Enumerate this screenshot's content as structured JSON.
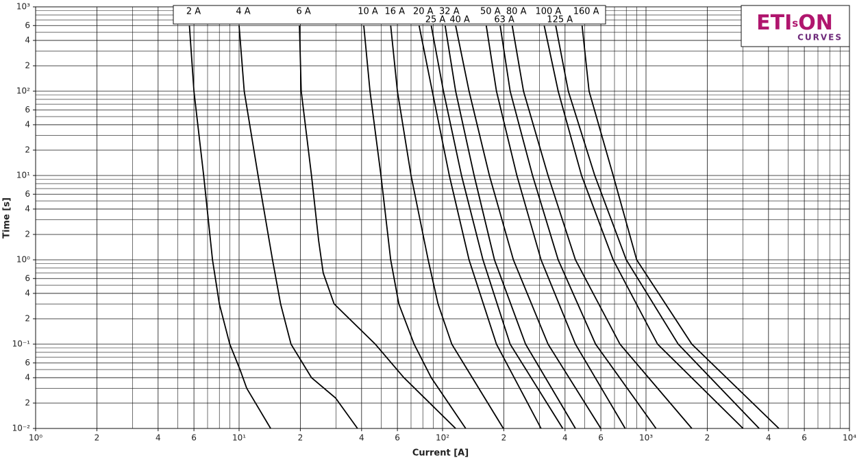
{
  "chart_data": {
    "type": "line",
    "x_label": "Current [A]",
    "y_label": "Time [s]",
    "xscale": "log",
    "yscale": "log",
    "grid": true,
    "xlim": [
      1,
      10000
    ],
    "ylim": [
      0.01,
      1000
    ],
    "xticks": [
      {
        "value": 1,
        "label": "10⁰"
      },
      2,
      4,
      6,
      {
        "value": 10,
        "label": "10¹"
      },
      {
        "value": 20,
        "label": "2"
      },
      {
        "value": 40,
        "label": "4"
      },
      {
        "value": 60,
        "label": "6"
      },
      {
        "value": 100,
        "label": "10²"
      },
      {
        "value": 200,
        "label": "2"
      },
      {
        "value": 400,
        "label": "4"
      },
      {
        "value": 600,
        "label": "6"
      },
      {
        "value": 1000,
        "label": "10³"
      },
      {
        "value": 2000,
        "label": "2"
      },
      {
        "value": 4000,
        "label": "4"
      },
      {
        "value": 6000,
        "label": "6"
      },
      {
        "value": 10000,
        "label": "10⁴"
      }
    ],
    "yticks": [
      {
        "value": 0.01,
        "label": "10⁻²"
      },
      {
        "value": 0.02,
        "label": "2"
      },
      {
        "value": 0.04,
        "label": "4"
      },
      {
        "value": 0.06,
        "label": "6"
      },
      {
        "value": 0.1,
        "label": "10⁻¹"
      },
      {
        "value": 0.2,
        "label": "2"
      },
      {
        "value": 0.4,
        "label": "4"
      },
      {
        "value": 0.6,
        "label": "6"
      },
      {
        "value": 1,
        "label": "10⁰"
      },
      2,
      4,
      6,
      {
        "value": 10,
        "label": "10¹"
      },
      {
        "value": 20,
        "label": "2"
      },
      {
        "value": 40,
        "label": "4"
      },
      {
        "value": 60,
        "label": "6"
      },
      {
        "value": 100,
        "label": "10²"
      },
      {
        "value": 200,
        "label": "2"
      },
      {
        "value": 400,
        "label": "4"
      },
      {
        "value": 600,
        "label": "6"
      },
      {
        "value": 1000,
        "label": "10³"
      }
    ],
    "logo": {
      "brand_left": "ETI",
      "brand_small": "s",
      "brand_right": "ON",
      "tagline": "CURVES"
    },
    "series": [
      {
        "name": "2 A",
        "color": "#000000",
        "x": [
          5.7,
          6.0,
          6.7,
          7.4,
          8.0,
          9.0,
          10.1,
          10.9,
          14.3
        ],
        "values": [
          600,
          100,
          10,
          1,
          0.3,
          0.1,
          0.05,
          0.03,
          0.01
        ]
      },
      {
        "name": "4 A",
        "color": "#000000",
        "x": [
          10.0,
          10.6,
          12.4,
          14.6,
          16,
          18,
          22.7,
          29.8,
          38.2
        ],
        "values": [
          600,
          100,
          10,
          1,
          0.3,
          0.1,
          0.04,
          0.023,
          0.01
        ]
      },
      {
        "name": "6 A",
        "color": "#000000",
        "x": [
          19.8,
          20.2,
          22.7,
          24.6,
          25.9,
          29.3,
          46.7,
          64.6,
          116
        ],
        "values": [
          600,
          100,
          10,
          1.7,
          0.7,
          0.3,
          0.1,
          0.04,
          0.01
        ]
      },
      {
        "name": "10 A",
        "color": "#000000",
        "x": [
          41,
          44,
          49.8,
          55.6,
          61,
          72.5,
          88,
          130
        ],
        "values": [
          600,
          100,
          10,
          1,
          0.3,
          0.1,
          0.04,
          0.01
        ]
      },
      {
        "name": "16 A",
        "color": "#000000",
        "x": [
          55.6,
          60,
          70,
          85,
          95,
          111,
          140,
          199
        ],
        "values": [
          600,
          100,
          10,
          1,
          0.3,
          0.1,
          0.04,
          0.01
        ]
      },
      {
        "name": "20 A",
        "color": "#000000",
        "x": [
          76.7,
          89,
          108,
          135,
          184,
          305
        ],
        "values": [
          600,
          100,
          10,
          1,
          0.1,
          0.01
        ]
      },
      {
        "name": "25 A",
        "color": "#000000",
        "x": [
          88,
          101,
          124,
          158,
          215,
          390
        ],
        "values": [
          600,
          100,
          10,
          1,
          0.1,
          0.01
        ]
      },
      {
        "name": "32 A",
        "color": "#000000",
        "x": [
          103,
          116,
          143,
          180,
          256,
          450
        ],
        "values": [
          600,
          100,
          10,
          1,
          0.1,
          0.01
        ]
      },
      {
        "name": "40 A",
        "color": "#000000",
        "x": [
          116,
          135,
          170,
          223,
          330,
          600
        ],
        "values": [
          600,
          100,
          10,
          1,
          0.1,
          0.01
        ]
      },
      {
        "name": "50 A",
        "color": "#000000",
        "x": [
          164,
          184,
          232,
          305,
          450,
          790
        ],
        "values": [
          600,
          100,
          10,
          1,
          0.1,
          0.01
        ]
      },
      {
        "name": "63 A",
        "color": "#000000",
        "x": [
          192,
          215,
          277,
          370,
          565,
          1120
        ],
        "values": [
          600,
          100,
          10,
          1,
          0.1,
          0.01
        ]
      },
      {
        "name": "80 A",
        "color": "#000000",
        "x": [
          220,
          250,
          330,
          450,
          745,
          1680
        ],
        "values": [
          600,
          100,
          10,
          1,
          0.1,
          0.01
        ]
      },
      {
        "name": "100 A",
        "color": "#000000",
        "x": [
          316,
          370,
          482,
          690,
          1140,
          3000
        ],
        "values": [
          600,
          100,
          10,
          1,
          0.1,
          0.01
        ]
      },
      {
        "name": "125 A",
        "color": "#000000",
        "x": [
          360,
          415,
          560,
          800,
          1440,
          3600
        ],
        "values": [
          600,
          100,
          10,
          1,
          0.1,
          0.01
        ]
      },
      {
        "name": "160 A",
        "color": "#000000",
        "x": [
          485,
          525,
          690,
          900,
          1680,
          4500
        ],
        "values": [
          600,
          100,
          10,
          1,
          0.1,
          0.01
        ]
      }
    ]
  }
}
